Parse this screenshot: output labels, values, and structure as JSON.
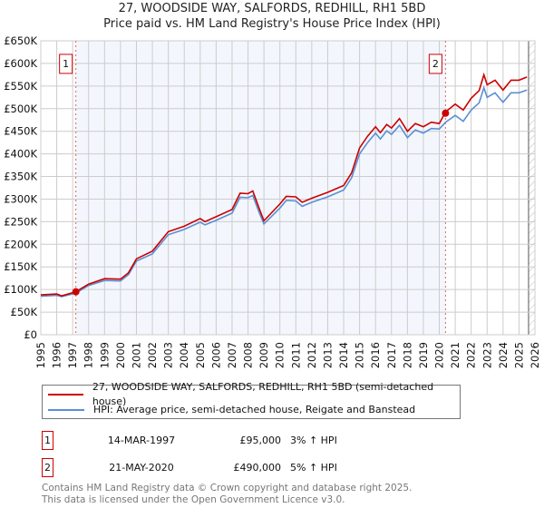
{
  "chart_data": {
    "type": "line",
    "title": "27, WOODSIDE WAY, SALFORDS, REDHILL, RH1 5BD",
    "subtitle": "Price paid vs. HM Land Registry's House Price Index (HPI)",
    "xlim": [
      1995,
      2026
    ],
    "ylim": [
      0,
      650000
    ],
    "x_ticks": [
      "1995",
      "1996",
      "1997",
      "1998",
      "1999",
      "2000",
      "2001",
      "2002",
      "2003",
      "2004",
      "2005",
      "2006",
      "2007",
      "2008",
      "2009",
      "2010",
      "2011",
      "2012",
      "2013",
      "2014",
      "2015",
      "2016",
      "2017",
      "2018",
      "2019",
      "2020",
      "2021",
      "2022",
      "2023",
      "2024",
      "2025",
      "2026"
    ],
    "y_ticks": [
      {
        "v": 0,
        "label": "£0"
      },
      {
        "v": 50000,
        "label": "£50K"
      },
      {
        "v": 100000,
        "label": "£100K"
      },
      {
        "v": 150000,
        "label": "£150K"
      },
      {
        "v": 200000,
        "label": "£200K"
      },
      {
        "v": 250000,
        "label": "£250K"
      },
      {
        "v": 300000,
        "label": "£300K"
      },
      {
        "v": 350000,
        "label": "£350K"
      },
      {
        "v": 400000,
        "label": "£400K"
      },
      {
        "v": 450000,
        "label": "£450K"
      },
      {
        "v": 500000,
        "label": "£500K"
      },
      {
        "v": 550000,
        "label": "£550K"
      },
      {
        "v": 600000,
        "label": "£600K"
      },
      {
        "v": 650000,
        "label": "£650K"
      }
    ],
    "grid": true,
    "x": [
      1995,
      1996,
      1996.3,
      1997.2,
      1998,
      1999,
      2000,
      2000.5,
      2001,
      2002,
      2003,
      2004,
      2005,
      2005.3,
      2006,
      2007,
      2007.5,
      2008,
      2008.3,
      2008.7,
      2009,
      2010,
      2010.4,
      2011,
      2011.4,
      2012,
      2013,
      2014,
      2014.5,
      2015,
      2015.5,
      2016,
      2016.3,
      2016.7,
      2017,
      2017.5,
      2018,
      2018.5,
      2019,
      2019.5,
      2020,
      2020.4,
      2021,
      2021.5,
      2022,
      2022.5,
      2022.8,
      2023,
      2023.5,
      2024,
      2024.5,
      2025,
      2025.5
    ],
    "series": [
      {
        "name": "27, WOODSIDE WAY, SALFORDS, REDHILL, RH1 5BD (semi-detached house)",
        "color": "#cc0000",
        "values": [
          88000,
          90000,
          86000,
          95000,
          112000,
          124000,
          123000,
          137000,
          168000,
          185000,
          228000,
          240000,
          257000,
          250000,
          261000,
          277000,
          313000,
          312000,
          318000,
          279000,
          252000,
          289000,
          306000,
          305000,
          293000,
          302000,
          315000,
          330000,
          358000,
          413000,
          439000,
          460000,
          447000,
          465000,
          457000,
          478000,
          450000,
          467000,
          460000,
          470000,
          467000,
          493000,
          510000,
          497000,
          523000,
          540000,
          575000,
          553000,
          563000,
          541000,
          563000,
          563000,
          570000
        ]
      },
      {
        "name": "HPI: Average price, semi-detached house, Reigate and Banstead",
        "color": "#5b8fd4",
        "values": [
          85000,
          87000,
          84000,
          92000,
          109000,
          120000,
          119000,
          133000,
          163000,
          179000,
          221000,
          233000,
          249000,
          243000,
          253000,
          269000,
          304000,
          303000,
          308000,
          270000,
          245000,
          280000,
          297000,
          296000,
          284000,
          293000,
          305000,
          320000,
          347000,
          400000,
          425000,
          446000,
          433000,
          451000,
          443000,
          463000,
          436000,
          453000,
          446000,
          456000,
          455000,
          470000,
          485000,
          472000,
          497000,
          513000,
          546000,
          525000,
          535000,
          514000,
          535000,
          535000,
          541000
        ]
      }
    ],
    "sales": [
      {
        "id": "1",
        "x": 1997.2,
        "value": 95000,
        "date": "14-MAR-1997",
        "price": "£95,000",
        "hpi": "3% ↑ HPI"
      },
      {
        "id": "2",
        "x": 2020.39,
        "value": 490000,
        "date": "21-MAY-2020",
        "price": "£490,000",
        "hpi": "5% ↑ HPI"
      }
    ],
    "shaded_range": [
      1997.2,
      2020.39
    ],
    "forecast_hatch_from": 2025.6,
    "legend_placement": "bottom"
  },
  "footer": {
    "line1": "Contains HM Land Registry data © Crown copyright and database right 2025.",
    "line2": "This data is licensed under the Open Government Licence v3.0."
  }
}
